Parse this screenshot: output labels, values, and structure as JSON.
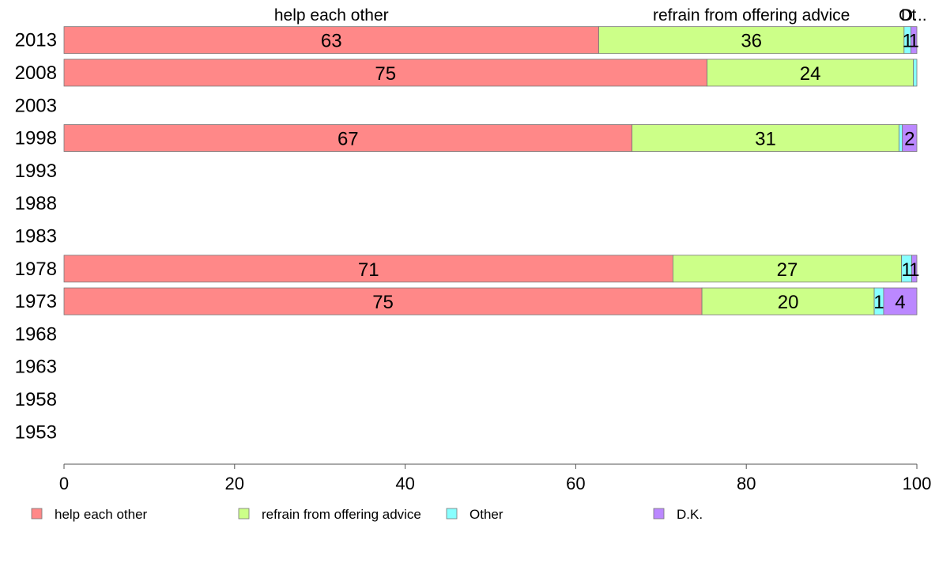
{
  "chart_data": {
    "type": "bar",
    "orientation": "horizontal",
    "stacked": true,
    "categories": [
      "2013",
      "2008",
      "2003",
      "1998",
      "1993",
      "1988",
      "1983",
      "1978",
      "1973",
      "1968",
      "1963",
      "1958",
      "1953"
    ],
    "series": [
      {
        "name": "help each other",
        "color": "#ff8888",
        "values": [
          62.7,
          75.4,
          null,
          66.6,
          null,
          null,
          null,
          71.4,
          74.8,
          null,
          null,
          null,
          null
        ],
        "labels": [
          "63",
          "75",
          "",
          "67",
          "",
          "",
          "",
          "71",
          "75",
          "",
          "",
          "",
          ""
        ]
      },
      {
        "name": "refrain from offering advice",
        "color": "#ccff88",
        "values": [
          35.8,
          24.2,
          null,
          31.3,
          null,
          null,
          null,
          26.8,
          20.2,
          null,
          null,
          null,
          null
        ],
        "labels": [
          "36",
          "24",
          "",
          "31",
          "",
          "",
          "",
          "27",
          "20",
          "",
          "",
          "",
          ""
        ]
      },
      {
        "name": "Other",
        "color": "#88ffff",
        "values": [
          0.8,
          0.4,
          null,
          0.4,
          null,
          null,
          null,
          1.2,
          1.1,
          null,
          null,
          null,
          null
        ],
        "labels": [
          "1",
          "",
          "",
          "",
          "",
          "",
          "",
          "1",
          "1",
          "",
          "",
          "",
          ""
        ]
      },
      {
        "name": "D.K.",
        "color": "#bb88ff",
        "values": [
          0.7,
          0.0,
          null,
          1.7,
          null,
          null,
          null,
          0.6,
          3.9,
          null,
          null,
          null,
          null
        ],
        "labels": [
          "1",
          "",
          "",
          "2",
          "",
          "",
          "",
          "1",
          "4",
          "",
          "",
          "",
          ""
        ]
      }
    ],
    "top_labels": [
      "help each other",
      "refrain from offering advice",
      "Ot",
      "D..."
    ],
    "xlim": [
      0,
      100
    ],
    "xticks": [
      "0",
      "20",
      "40",
      "60",
      "80",
      "100"
    ],
    "legend_position": "bottom",
    "grid": false
  }
}
